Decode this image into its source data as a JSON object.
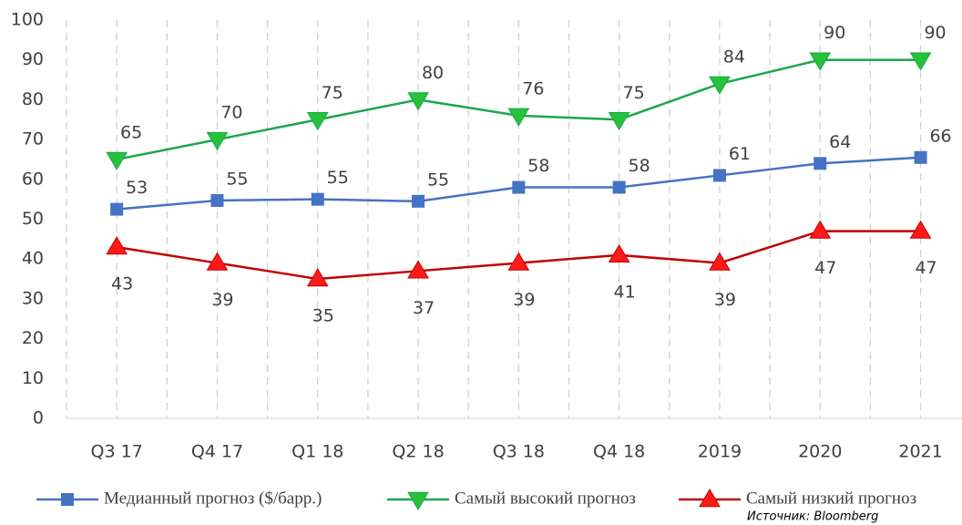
{
  "chart_data": {
    "type": "line",
    "categories": [
      "Q3 17",
      "Q4 17",
      "Q1 18",
      "Q2 18",
      "Q3 18",
      "Q4 18",
      "2019",
      "2020",
      "2021"
    ],
    "series": [
      {
        "name": "Медианный прогноз ($/барр.)",
        "color": "#4472c4",
        "marker": "square",
        "values": [
          52.5,
          54.7,
          55,
          54.5,
          58,
          58,
          61,
          64,
          65.5
        ],
        "value_labels": [
          "53",
          "55",
          "55",
          "55",
          "58",
          "58",
          "61",
          "64",
          "66"
        ]
      },
      {
        "name": "Самый высокий прогноз",
        "color": "#1aa74b",
        "marker": "triangle-down",
        "values": [
          65,
          70,
          75,
          80,
          76,
          75,
          84,
          90,
          90
        ]
      },
      {
        "name": "Самый низкий прогноз",
        "color": "#c00000",
        "marker": "triangle-up",
        "values": [
          43,
          39,
          35,
          37,
          39,
          41,
          39,
          47,
          47
        ]
      }
    ],
    "ylim": [
      0,
      100
    ],
    "yticks": [
      0,
      10,
      20,
      30,
      40,
      50,
      60,
      70,
      80,
      90,
      100
    ],
    "legend": "bottom",
    "source": "Источник: Bloomberg"
  }
}
